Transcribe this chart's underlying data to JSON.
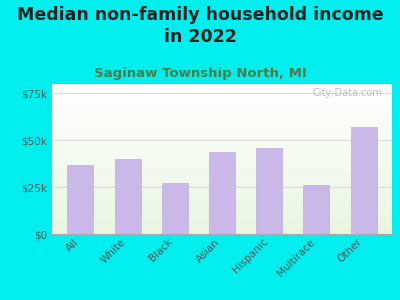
{
  "title": "Median non-family household income\nin 2022",
  "subtitle": "Saginaw Township North, MI",
  "categories": [
    "All",
    "White",
    "Black",
    "Asian",
    "Hispanic",
    "Multirace",
    "Other"
  ],
  "values": [
    37000,
    40000,
    27000,
    44000,
    46000,
    26000,
    57000
  ],
  "bar_color": "#c9b8e8",
  "bar_edge_color": "#bbaedd",
  "yticks": [
    0,
    25000,
    50000,
    75000
  ],
  "ytick_labels": [
    "$0",
    "$25k",
    "$50k",
    "$75k"
  ],
  "ylim": [
    0,
    80000
  ],
  "bg_outer": "#00eeee",
  "bg_chart_top": "#e8f5e0",
  "bg_chart_bottom": "#f8fff0",
  "title_color": "#222222",
  "subtitle_color": "#4a7c4a",
  "watermark": "City-Data.com",
  "title_fontsize": 12.5,
  "subtitle_fontsize": 9.5,
  "tick_label_fontsize": 7.5,
  "grid_color": "#dddddd",
  "spine_color": "#aaaaaa"
}
